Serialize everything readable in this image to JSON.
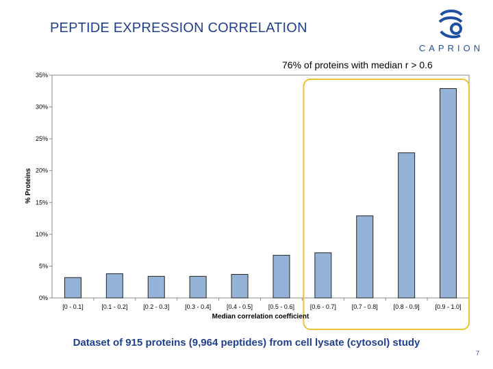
{
  "slide": {
    "title": "PEPTIDE EXPRESSION CORRELATION",
    "logo_text": "CAPRION",
    "annotation": "76% of proteins with median r > 0.6",
    "footer": "Dataset of 915 proteins (9,964 peptides) from cell lysate (cytosol) study",
    "page_number": "7"
  },
  "colors": {
    "bar": "#95b3d7",
    "bar_stroke": "#222222",
    "highlight": "#f0c030",
    "title": "#1f3f8f"
  },
  "chart_data": {
    "type": "bar",
    "title": "",
    "xlabel": "Median correlation coefficient",
    "ylabel": "% Proteins",
    "categories": [
      "[0 - 0.1]",
      "[0.1 - 0.2]",
      "[0.2 - 0.3]",
      "[0.3 - 0.4]",
      "[0.4 - 0.5]",
      "[0.5 - 0.6]",
      "[0.6 - 0.7]",
      "[0.7 - 0.8]",
      "[0.8 - 0.9]",
      "[0.9 - 1.0]"
    ],
    "values": [
      3.2,
      3.8,
      3.4,
      3.4,
      3.7,
      6.7,
      7.1,
      12.9,
      22.8,
      32.9
    ],
    "ylim": [
      0,
      35
    ],
    "yticks": [
      "0%",
      "5%",
      "10%",
      "15%",
      "20%",
      "25%",
      "30%",
      "35%"
    ],
    "grid": false,
    "legend": "none",
    "highlight_categories": [
      "[0.6 - 0.7]",
      "[0.7 - 0.8]",
      "[0.8 - 0.9]",
      "[0.9 - 1.0]"
    ]
  }
}
